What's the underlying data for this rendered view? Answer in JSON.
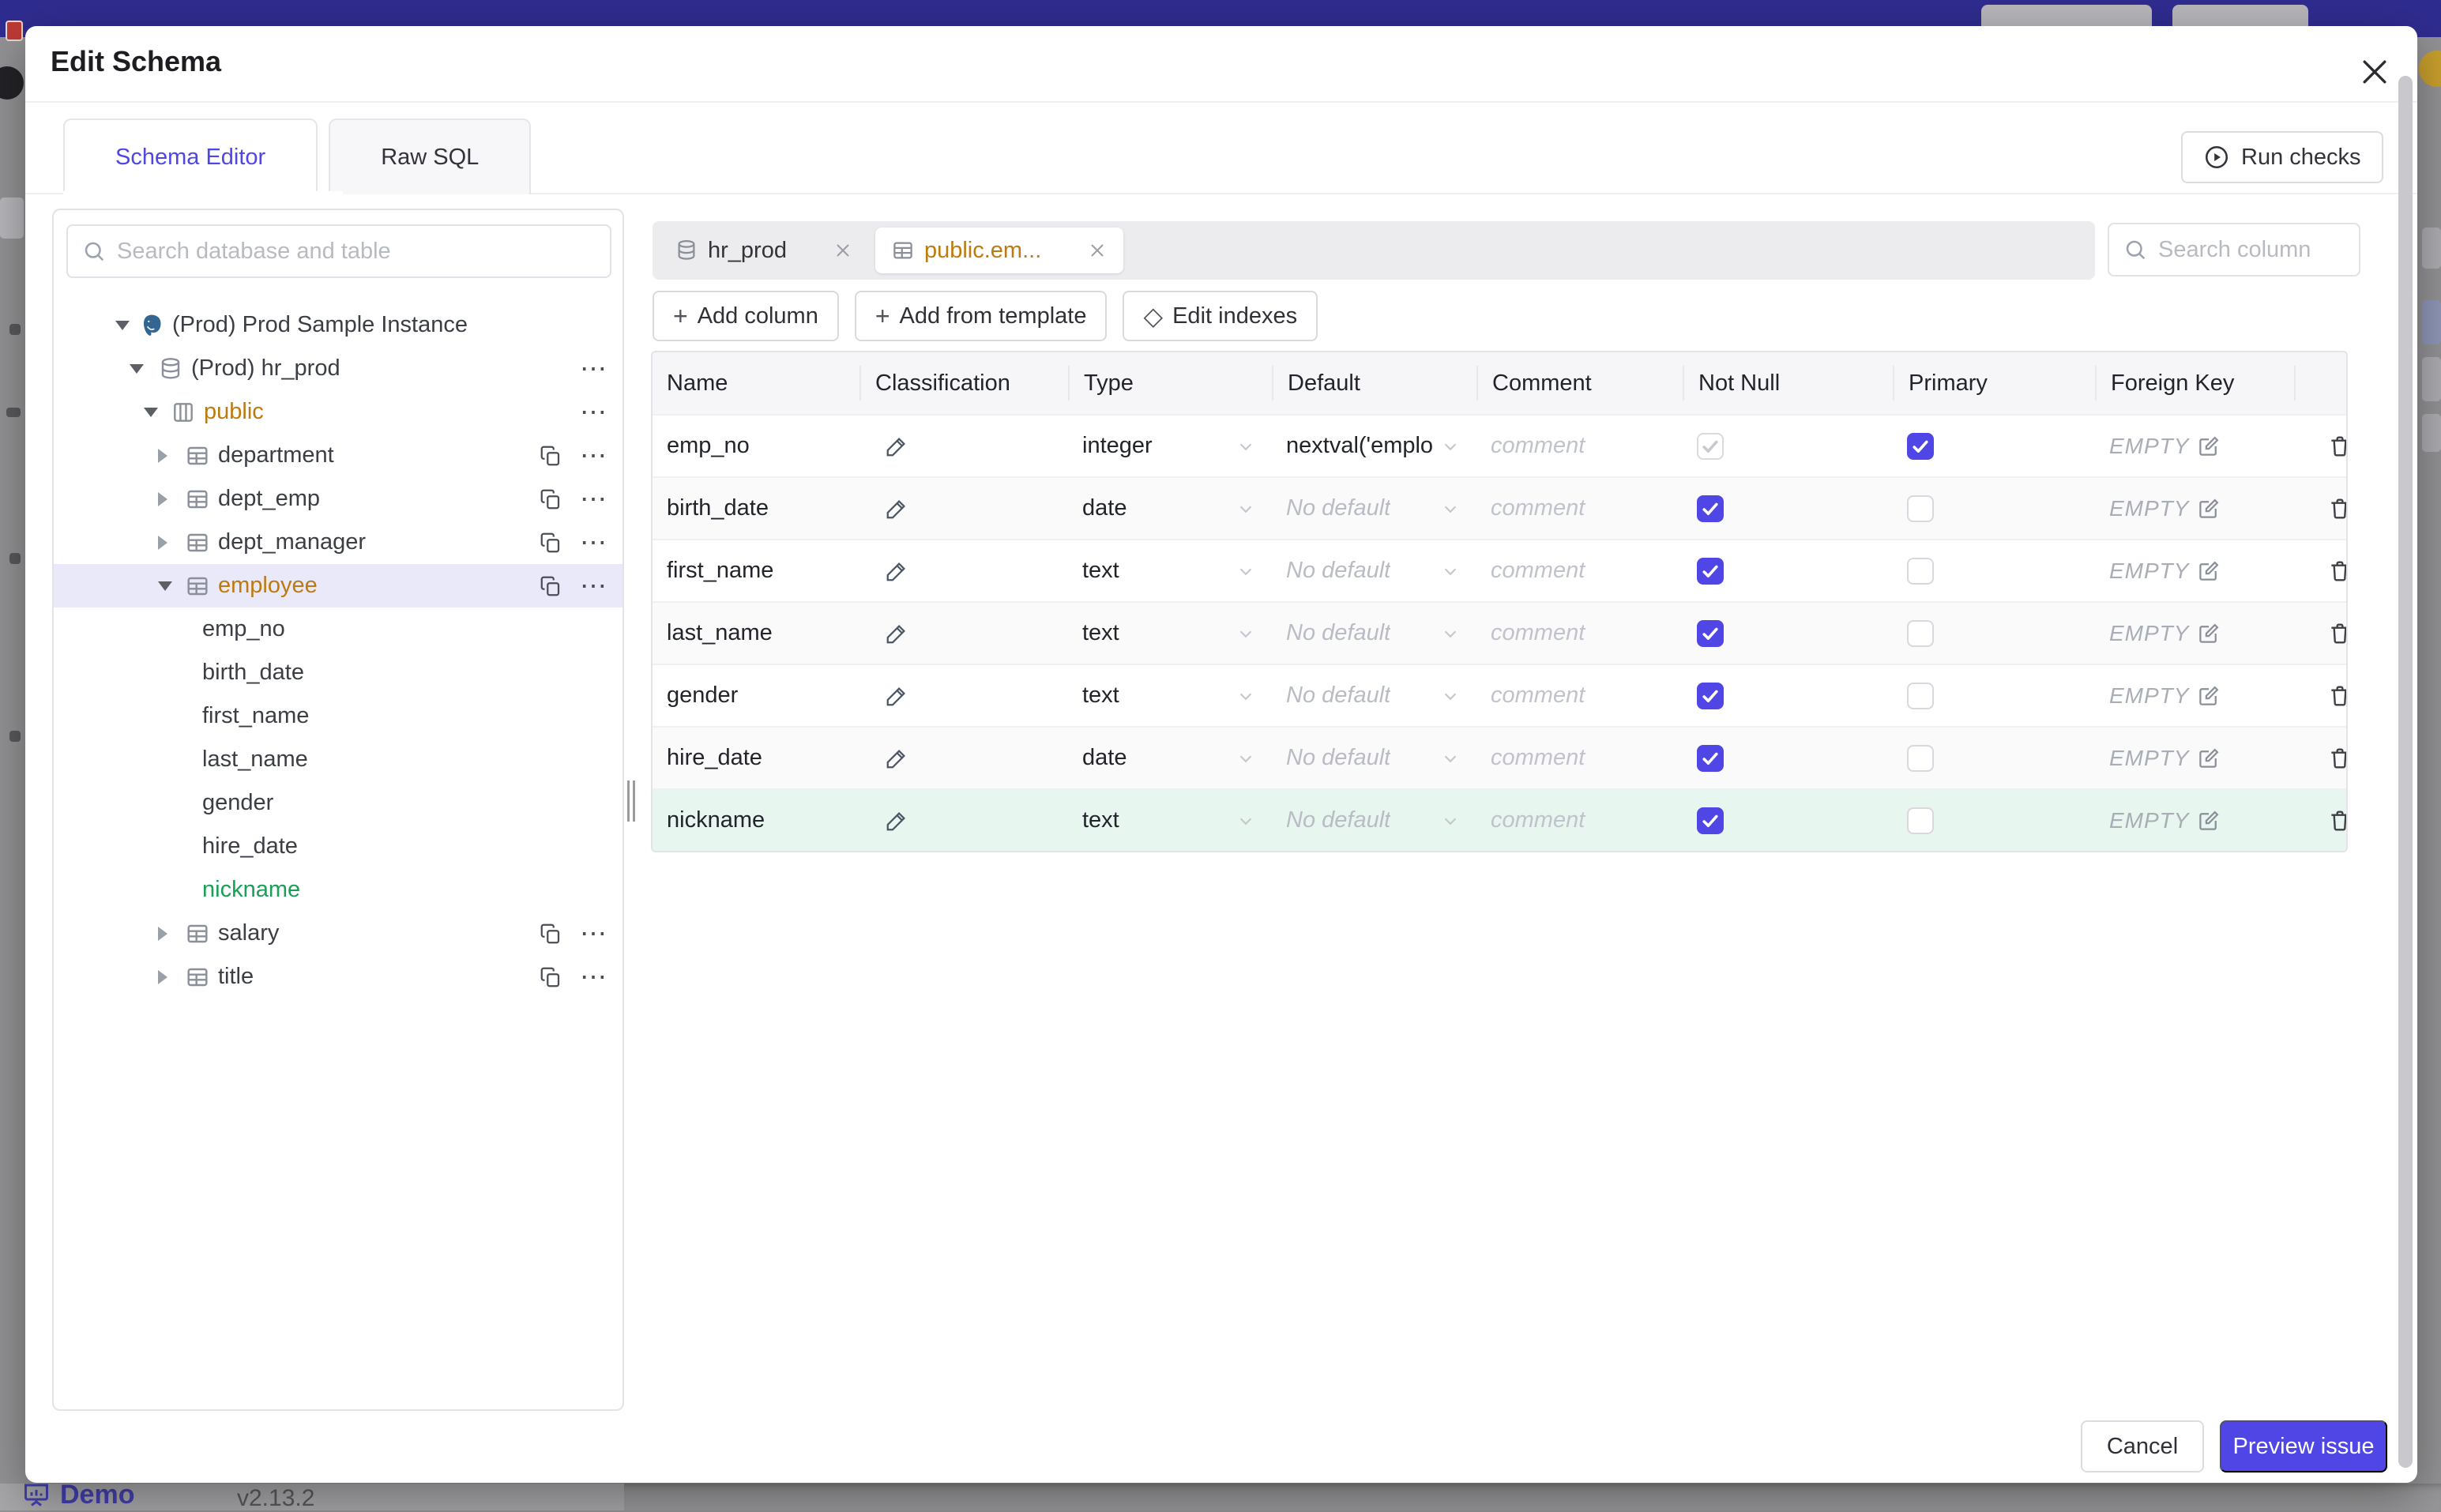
{
  "colors": {
    "accent": "#4f46e5",
    "amber": "#bd7a0e",
    "green": "#18a058",
    "topbar": "#2f2c90",
    "new_row_bg": "#e7f6ee",
    "selected_tree_bg": "#eae9fa"
  },
  "page": {
    "footer": {
      "brand": "Demo",
      "version": "v2.13.2"
    }
  },
  "modal": {
    "title": "Edit Schema",
    "tabs": [
      {
        "label": "Schema Editor",
        "active": true
      },
      {
        "label": "Raw SQL",
        "active": false
      }
    ],
    "run_checks_label": "Run checks",
    "sidebar": {
      "search_placeholder": "Search database and table",
      "tree": [
        {
          "label": "(Prod) Prod Sample Instance",
          "kind": "instance",
          "level": 0,
          "caret": "down",
          "icon": "postgresql",
          "color": "default",
          "selected": false,
          "actions": []
        },
        {
          "label": "(Prod) hr_prod",
          "kind": "database",
          "level": 1,
          "caret": "down",
          "icon": "database",
          "color": "default",
          "selected": false,
          "actions": [
            "more"
          ]
        },
        {
          "label": "public",
          "kind": "schema",
          "level": 2,
          "caret": "down",
          "icon": "schema",
          "color": "amber",
          "selected": false,
          "actions": [
            "more"
          ]
        },
        {
          "label": "department",
          "kind": "table",
          "level": 3,
          "caret": "right",
          "icon": "table",
          "color": "default",
          "selected": false,
          "actions": [
            "copy",
            "more"
          ]
        },
        {
          "label": "dept_emp",
          "kind": "table",
          "level": 3,
          "caret": "right",
          "icon": "table",
          "color": "default",
          "selected": false,
          "actions": [
            "copy",
            "more"
          ]
        },
        {
          "label": "dept_manager",
          "kind": "table",
          "level": 3,
          "caret": "right",
          "icon": "table",
          "color": "default",
          "selected": false,
          "actions": [
            "copy",
            "more"
          ]
        },
        {
          "label": "employee",
          "kind": "table",
          "level": 3,
          "caret": "down",
          "icon": "table",
          "color": "amber",
          "selected": true,
          "actions": [
            "copy",
            "more"
          ]
        },
        {
          "label": "emp_no",
          "kind": "column",
          "level": 4,
          "caret": "none",
          "icon": "none",
          "color": "default",
          "selected": false,
          "actions": []
        },
        {
          "label": "birth_date",
          "kind": "column",
          "level": 4,
          "caret": "none",
          "icon": "none",
          "color": "default",
          "selected": false,
          "actions": []
        },
        {
          "label": "first_name",
          "kind": "column",
          "level": 4,
          "caret": "none",
          "icon": "none",
          "color": "default",
          "selected": false,
          "actions": []
        },
        {
          "label": "last_name",
          "kind": "column",
          "level": 4,
          "caret": "none",
          "icon": "none",
          "color": "default",
          "selected": false,
          "actions": []
        },
        {
          "label": "gender",
          "kind": "column",
          "level": 4,
          "caret": "none",
          "icon": "none",
          "color": "default",
          "selected": false,
          "actions": []
        },
        {
          "label": "hire_date",
          "kind": "column",
          "level": 4,
          "caret": "none",
          "icon": "none",
          "color": "default",
          "selected": false,
          "actions": []
        },
        {
          "label": "nickname",
          "kind": "column",
          "level": 4,
          "caret": "none",
          "icon": "none",
          "color": "green",
          "selected": false,
          "actions": []
        },
        {
          "label": "salary",
          "kind": "table",
          "level": 3,
          "caret": "right",
          "icon": "table",
          "color": "default",
          "selected": false,
          "actions": [
            "copy",
            "more"
          ]
        },
        {
          "label": "title",
          "kind": "table",
          "level": 3,
          "caret": "right",
          "icon": "table",
          "color": "default",
          "selected": false,
          "actions": [
            "copy",
            "more"
          ]
        }
      ]
    },
    "workspace": {
      "chips": [
        {
          "label": "hr_prod",
          "icon": "database",
          "selected": false
        },
        {
          "label": "public.em...",
          "icon": "table",
          "selected": true
        }
      ],
      "column_search_placeholder": "Search column",
      "toolbar": [
        {
          "label": "Add column",
          "glyph": "plus"
        },
        {
          "label": "Add from template",
          "glyph": "plus"
        },
        {
          "label": "Edit indexes",
          "glyph": "diamond"
        }
      ],
      "table": {
        "headers": [
          "Name",
          "Classification",
          "Type",
          "Default",
          "Comment",
          "Not Null",
          "Primary",
          "Foreign Key"
        ],
        "comment_placeholder": "comment",
        "no_default_label": "No default",
        "foreign_key_empty": "EMPTY",
        "rows": [
          {
            "name": "emp_no",
            "type": "integer",
            "default": "nextval('employ",
            "default_is_placeholder": false,
            "not_null": true,
            "not_null_disabled": true,
            "primary": true,
            "style": "white"
          },
          {
            "name": "birth_date",
            "type": "date",
            "default": "No default",
            "default_is_placeholder": true,
            "not_null": true,
            "not_null_disabled": false,
            "primary": false,
            "style": "stripe"
          },
          {
            "name": "first_name",
            "type": "text",
            "default": "No default",
            "default_is_placeholder": true,
            "not_null": true,
            "not_null_disabled": false,
            "primary": false,
            "style": "white"
          },
          {
            "name": "last_name",
            "type": "text",
            "default": "No default",
            "default_is_placeholder": true,
            "not_null": true,
            "not_null_disabled": false,
            "primary": false,
            "style": "stripe"
          },
          {
            "name": "gender",
            "type": "text",
            "default": "No default",
            "default_is_placeholder": true,
            "not_null": true,
            "not_null_disabled": false,
            "primary": false,
            "style": "white"
          },
          {
            "name": "hire_date",
            "type": "date",
            "default": "No default",
            "default_is_placeholder": true,
            "not_null": true,
            "not_null_disabled": false,
            "primary": false,
            "style": "stripe"
          },
          {
            "name": "nickname",
            "type": "text",
            "default": "No default",
            "default_is_placeholder": true,
            "not_null": true,
            "not_null_disabled": false,
            "primary": false,
            "style": "newcol"
          }
        ]
      }
    },
    "footer": {
      "cancel_label": "Cancel",
      "primary_label": "Preview issue"
    }
  }
}
